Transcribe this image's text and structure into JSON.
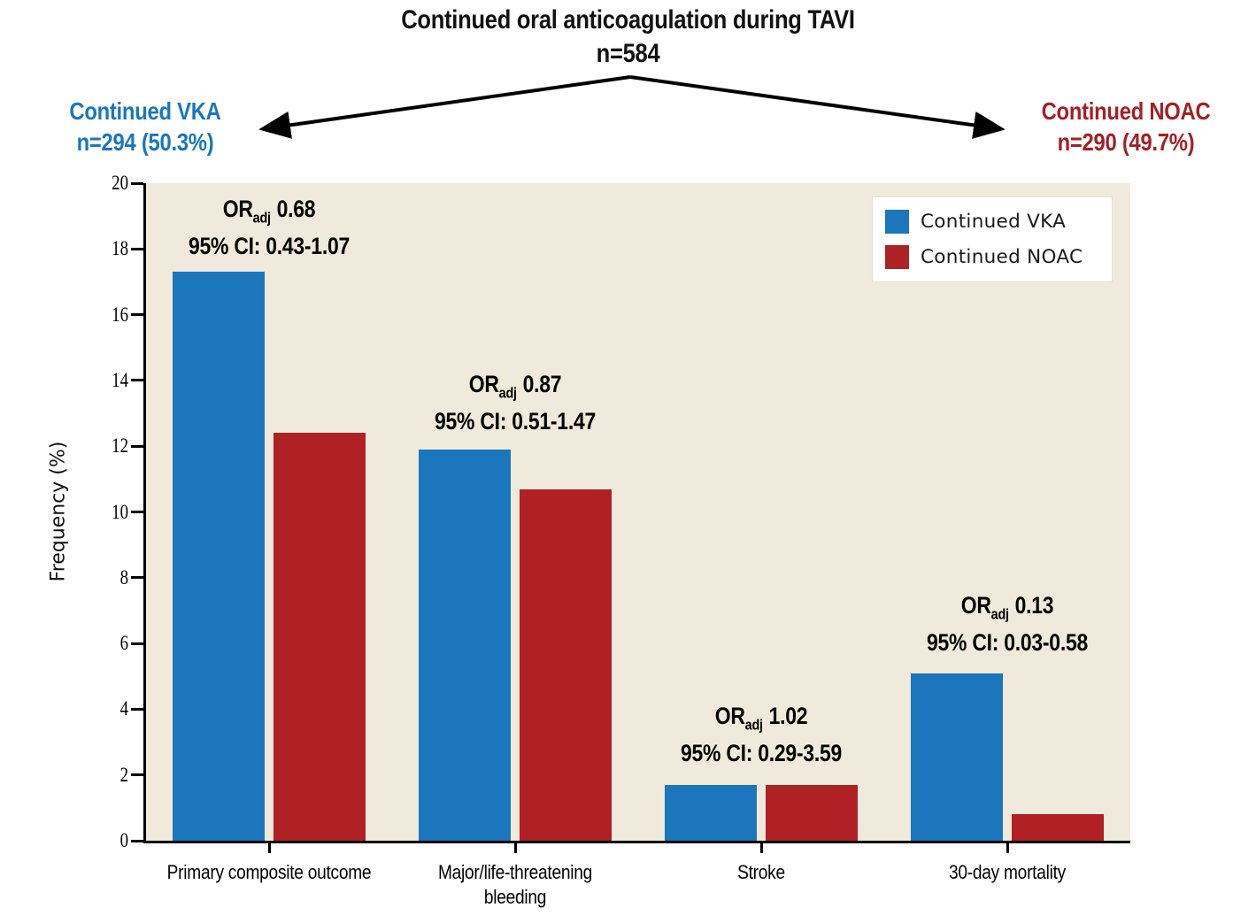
{
  "figure": {
    "title_line1": "Continued oral anticoagulation during TAVI",
    "title_line2": "n=584",
    "left_group": {
      "name": "Continued VKA",
      "count": "n=294 (50.3%)",
      "color": "#1b76bc"
    },
    "right_group": {
      "name": "Continued NOAC",
      "count": "n=290 (49.7%)",
      "color": "#a32026"
    }
  },
  "legend": {
    "items": [
      {
        "label": "Continued VKA",
        "color": "#1b76bc"
      },
      {
        "label": "Continued NOAC",
        "color": "#b02126"
      }
    ]
  },
  "chart_data": {
    "type": "bar",
    "title": "Continued oral anticoagulation during TAVI",
    "subtitle": "n=584",
    "ylabel": "Frequency (%)",
    "ylim": [
      0,
      20
    ],
    "ytick_step": 2,
    "grid": false,
    "legend_position": "top-right",
    "plot_background": "#efeadb",
    "categories": [
      "Primary composite outcome",
      "Major/life-threatening bleeding",
      "Stroke",
      "30-day mortality"
    ],
    "xtick_display": [
      "Primary composite outcome",
      "Major/life-threatening\nbleeding",
      "Stroke",
      "30-day mortality"
    ],
    "series": [
      {
        "name": "Continued VKA",
        "color": "#1b76bc",
        "values": [
          17.3,
          11.9,
          1.7,
          5.1
        ]
      },
      {
        "name": "Continued NOAC",
        "color": "#b02126",
        "values": [
          12.4,
          10.7,
          1.7,
          0.8
        ]
      }
    ],
    "annotations": [
      {
        "or_label": "OR",
        "or_sub": "adj",
        "or_value": "0.68",
        "ci": "95% CI: 0.43-1.07",
        "category": "Primary composite outcome"
      },
      {
        "or_label": "OR",
        "or_sub": "adj",
        "or_value": "0.87",
        "ci": "95% CI: 0.51-1.47",
        "category": "Major/life-threatening bleeding"
      },
      {
        "or_label": "OR",
        "or_sub": "adj",
        "or_value": "1.02",
        "ci": "95% CI: 0.29-3.59",
        "category": "Stroke"
      },
      {
        "or_label": "OR",
        "or_sub": "adj",
        "or_value": "0.13",
        "ci": "95% CI: 0.03-0.58",
        "category": "30-day mortality"
      }
    ]
  }
}
